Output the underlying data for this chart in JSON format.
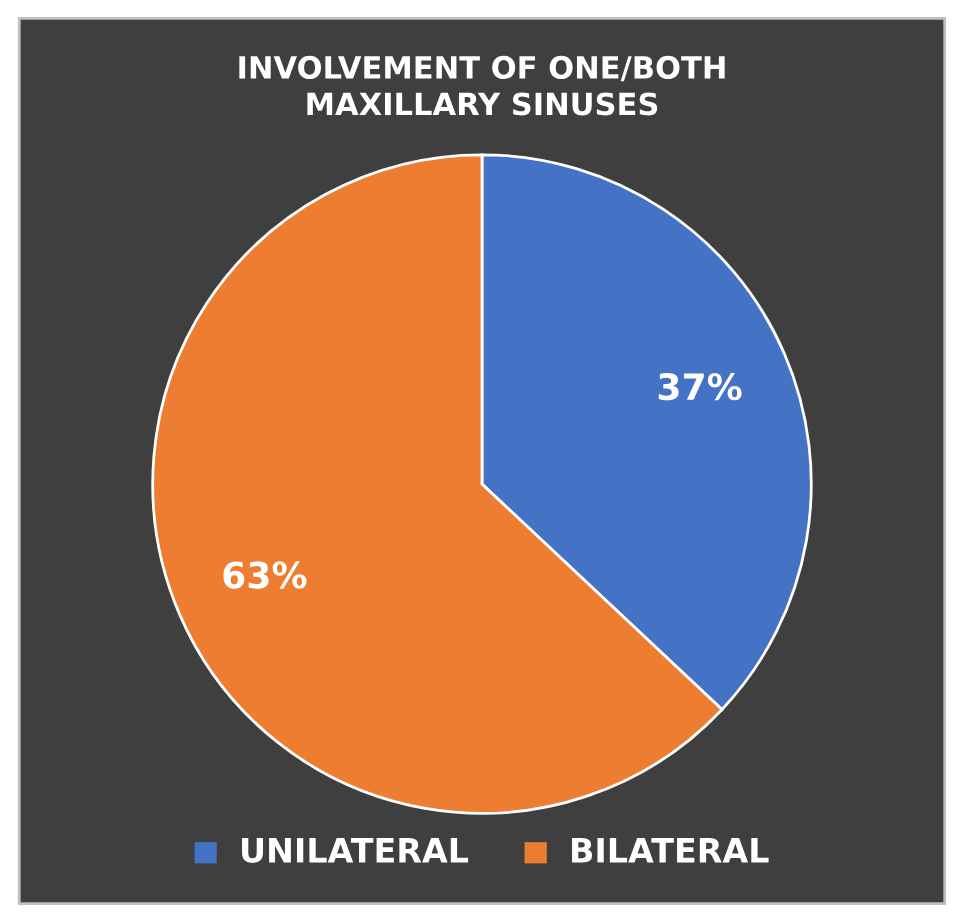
{
  "chart_data": {
    "type": "pie",
    "title": "INVOLVEMENT OF ONE/BOTH\nMAXILLARY SINUSES",
    "categories": [
      "UNILATERAL",
      "BILATERAL"
    ],
    "values": [
      37,
      63
    ],
    "colors": [
      "#4472c4",
      "#ed7d31"
    ],
    "value_labels": [
      "37%",
      "63%"
    ],
    "legend": "bottom"
  }
}
